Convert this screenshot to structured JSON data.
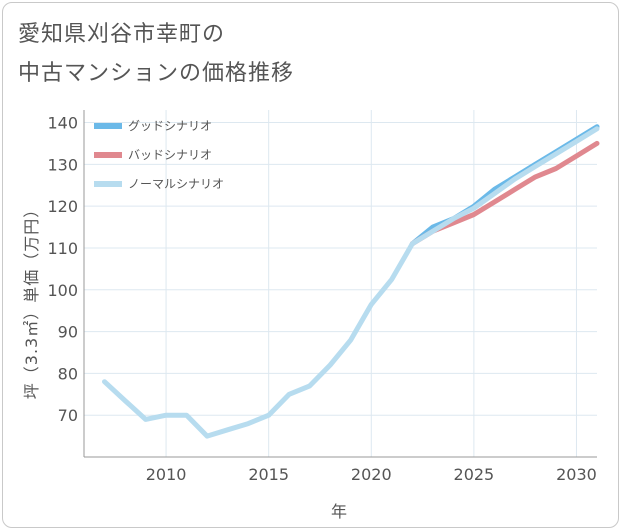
{
  "title_line1": "愛知県刈谷市幸町の",
  "title_line2": "中古マンションの価格推移",
  "chart_data": {
    "type": "line",
    "title": "愛知県刈谷市幸町の中古マンションの価格推移",
    "xlabel": "年",
    "ylabel": "坪（3.3㎡）単価（万円）",
    "xlim": [
      2006,
      2031
    ],
    "ylim": [
      60,
      143
    ],
    "xticks": [
      2010,
      2015,
      2020,
      2025,
      2030
    ],
    "yticks": [
      70,
      80,
      90,
      100,
      110,
      120,
      130,
      140
    ],
    "grid": true,
    "legend_position": "top-left",
    "series": [
      {
        "name": "グッドシナリオ",
        "color": "#6bb9e8",
        "x": [
          2022,
          2023,
          2024,
          2025,
          2026,
          2027,
          2028,
          2029,
          2030,
          2031
        ],
        "y": [
          111,
          115,
          117,
          120,
          124,
          127,
          130,
          133,
          136,
          139
        ]
      },
      {
        "name": "バッドシナリオ",
        "color": "#e0888f",
        "x": [
          2022,
          2023,
          2024,
          2025,
          2026,
          2027,
          2028,
          2029,
          2030,
          2031
        ],
        "y": [
          111,
          114,
          116,
          118,
          121,
          124,
          127,
          129,
          132,
          135
        ]
      },
      {
        "name": "ノーマルシナリオ",
        "color": "#b7dcef",
        "x": [
          2007,
          2008,
          2009,
          2010,
          2011,
          2012,
          2013,
          2014,
          2015,
          2016,
          2017,
          2018,
          2019,
          2020,
          2021,
          2022,
          2023,
          2024,
          2025,
          2026,
          2027,
          2028,
          2029,
          2030,
          2031
        ],
        "y": [
          78,
          73.5,
          69,
          70,
          70,
          65,
          66.5,
          68,
          70,
          75,
          77,
          82,
          88,
          96.5,
          102.5,
          111,
          114,
          117,
          119.5,
          123,
          126.5,
          129.5,
          132.5,
          135.5,
          138.5
        ]
      }
    ]
  }
}
